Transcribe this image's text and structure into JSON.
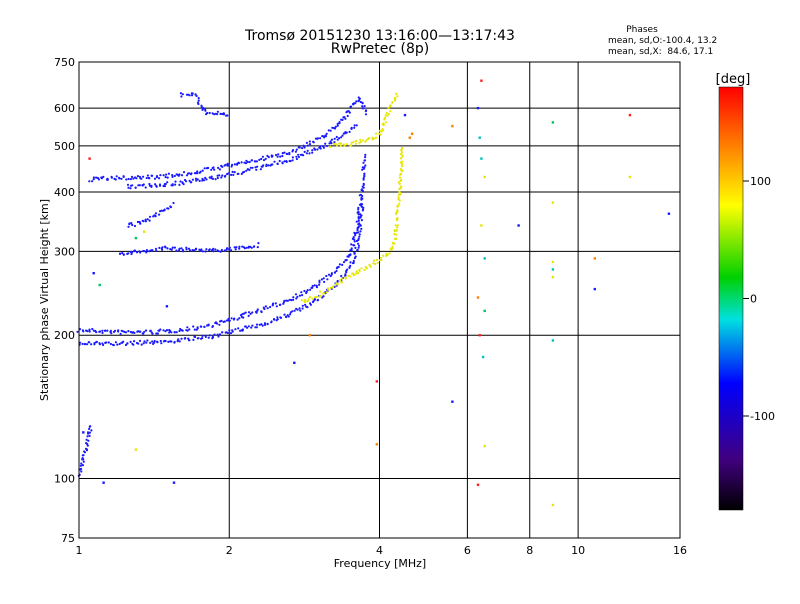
{
  "header": {
    "title_line1": "Tromsø 20151230 13:16:00—13:17:43",
    "title_line2": "RwPretec (8p)"
  },
  "phases_box": {
    "title": "Phases",
    "line1": "mean, sd,O:-100.4, 13.2",
    "line2": "mean, sd,X:  84.6, 17.1"
  },
  "chart_data": {
    "type": "scatter",
    "xlabel": "Frequency [MHz]",
    "ylabel": "Stationary phase Virtual Height [km]",
    "xscale": "log",
    "yscale": "log",
    "xlim": [
      1,
      16
    ],
    "ylim": [
      75,
      750
    ],
    "xticks": [
      1,
      2,
      4,
      6,
      8,
      10,
      16
    ],
    "yticks": [
      75,
      100,
      200,
      300,
      400,
      500,
      600,
      750
    ],
    "grid": true,
    "colorbar": {
      "label": "[deg]",
      "ticks": [
        100,
        0,
        -100
      ],
      "range": [
        -180,
        180
      ]
    },
    "traces": [
      {
        "name": "",
        "color": "#1a1aff",
        "points": [
          [
            1.0,
            205
          ],
          [
            1.1,
            204
          ],
          [
            1.2,
            203
          ],
          [
            1.4,
            203
          ],
          [
            1.6,
            205
          ],
          [
            1.8,
            209
          ],
          [
            2.0,
            215
          ],
          [
            2.2,
            222
          ],
          [
            2.5,
            232
          ],
          [
            2.8,
            245
          ],
          [
            3.0,
            255
          ],
          [
            3.2,
            268
          ],
          [
            3.4,
            285
          ],
          [
            3.5,
            300
          ],
          [
            3.6,
            330
          ],
          [
            3.65,
            370
          ],
          [
            3.7,
            410
          ],
          [
            3.72,
            450
          ],
          [
            3.75,
            480
          ]
        ]
      },
      {
        "name": "",
        "color": "#1a1aff",
        "points": [
          [
            1.0,
            192
          ],
          [
            1.2,
            192
          ],
          [
            1.5,
            194
          ],
          [
            1.8,
            198
          ],
          [
            2.0,
            203
          ],
          [
            2.3,
            210
          ],
          [
            2.6,
            220
          ],
          [
            2.9,
            232
          ],
          [
            3.1,
            243
          ],
          [
            3.3,
            258
          ],
          [
            3.5,
            278
          ],
          [
            3.6,
            300
          ],
          [
            3.65,
            330
          ],
          [
            3.7,
            380
          ]
        ]
      },
      {
        "name": "",
        "color": "#1a1aff",
        "points": [
          [
            1.05,
            425
          ],
          [
            1.2,
            428
          ],
          [
            1.4,
            430
          ],
          [
            1.6,
            435
          ],
          [
            1.8,
            445
          ],
          [
            2.0,
            455
          ],
          [
            2.3,
            468
          ],
          [
            2.6,
            482
          ],
          [
            2.9,
            505
          ],
          [
            3.1,
            525
          ],
          [
            3.3,
            555
          ],
          [
            3.45,
            585
          ],
          [
            3.55,
            610
          ],
          [
            3.65,
            630
          ],
          [
            3.72,
            605
          ],
          [
            3.75,
            580
          ]
        ]
      },
      {
        "name": "",
        "color": "#1a1aff",
        "points": [
          [
            1.25,
            410
          ],
          [
            1.5,
            415
          ],
          [
            1.8,
            425
          ],
          [
            2.0,
            435
          ],
          [
            2.3,
            450
          ],
          [
            2.6,
            465
          ],
          [
            2.9,
            485
          ],
          [
            3.1,
            500
          ],
          [
            3.3,
            520
          ],
          [
            3.5,
            540
          ],
          [
            3.6,
            560
          ]
        ]
      },
      {
        "name": "",
        "color": "#e6e600",
        "points": [
          [
            2.8,
            235
          ],
          [
            3.0,
            242
          ],
          [
            3.2,
            252
          ],
          [
            3.4,
            262
          ],
          [
            3.6,
            272
          ],
          [
            3.8,
            280
          ],
          [
            4.0,
            288
          ],
          [
            4.2,
            298
          ],
          [
            4.3,
            320
          ],
          [
            4.35,
            360
          ],
          [
            4.4,
            420
          ],
          [
            4.45,
            500
          ]
        ]
      },
      {
        "name": "",
        "color": "#e6e600",
        "points": [
          [
            3.2,
            500
          ],
          [
            3.5,
            505
          ],
          [
            3.8,
            515
          ],
          [
            4.0,
            530
          ],
          [
            4.1,
            560
          ],
          [
            4.2,
            600
          ],
          [
            4.3,
            630
          ],
          [
            4.35,
            645
          ]
        ]
      },
      {
        "name": "",
        "color": "#1a1aff",
        "points": [
          [
            1.25,
            340
          ],
          [
            1.35,
            345
          ],
          [
            1.5,
            370
          ],
          [
            1.55,
            378
          ]
        ]
      },
      {
        "name": "",
        "color": "#1a1aff",
        "points": [
          [
            1.0,
            102
          ],
          [
            1.02,
            110
          ],
          [
            1.04,
            120
          ],
          [
            1.06,
            130
          ]
        ]
      },
      {
        "name": "",
        "color": "#1a1aff",
        "points": [
          [
            1.2,
            295
          ],
          [
            1.35,
            300
          ],
          [
            1.5,
            305
          ],
          [
            1.7,
            302
          ],
          [
            1.9,
            302
          ],
          [
            2.1,
            305
          ],
          [
            2.3,
            310
          ]
        ]
      },
      {
        "name": "",
        "color": "#1a1aff",
        "points": [
          [
            1.6,
            640
          ],
          [
            1.7,
            645
          ],
          [
            1.8,
            585
          ],
          [
            1.9,
            585
          ],
          [
            2.0,
            583
          ]
        ]
      }
    ],
    "isolated_points": [
      [
        6.4,
        685,
        "#ff2020"
      ],
      [
        6.3,
        600,
        "#1a1aff"
      ],
      [
        6.35,
        520,
        "#00c0c0"
      ],
      [
        6.4,
        470,
        "#00c0c0"
      ],
      [
        6.5,
        430,
        "#e6e600"
      ],
      [
        6.4,
        340,
        "#e6e600"
      ],
      [
        6.5,
        290,
        "#00c0c0"
      ],
      [
        6.3,
        240,
        "#ff8000"
      ],
      [
        6.5,
        225,
        "#00c060"
      ],
      [
        6.35,
        200,
        "#ff2020"
      ],
      [
        6.45,
        180,
        "#00c0c0"
      ],
      [
        6.3,
        97,
        "#ff2020"
      ],
      [
        6.5,
        117,
        "#e6e600"
      ],
      [
        5.6,
        550,
        "#ff8000"
      ],
      [
        5.6,
        145,
        "#1a1aff"
      ],
      [
        7.6,
        340,
        "#1a1aff"
      ],
      [
        8.9,
        560,
        "#00c060"
      ],
      [
        8.9,
        380,
        "#e6e600"
      ],
      [
        8.9,
        285,
        "#e6e600"
      ],
      [
        8.9,
        275,
        "#00c0c0"
      ],
      [
        8.9,
        265,
        "#e6e600"
      ],
      [
        8.9,
        195,
        "#00c0c0"
      ],
      [
        8.9,
        88,
        "#e6e600"
      ],
      [
        10.8,
        290,
        "#ff8000"
      ],
      [
        10.8,
        250,
        "#1a1aff"
      ],
      [
        12.7,
        580,
        "#ff2020"
      ],
      [
        12.7,
        430,
        "#e6e600"
      ],
      [
        15.2,
        360,
        "#1a1aff"
      ],
      [
        3.95,
        160,
        "#ff2020"
      ],
      [
        3.95,
        118,
        "#ff8000"
      ],
      [
        4.6,
        520,
        "#ff8000"
      ],
      [
        4.65,
        530,
        "#ff8000"
      ],
      [
        1.55,
        98,
        "#1a1aff"
      ],
      [
        1.12,
        98,
        "#1a1aff"
      ],
      [
        1.3,
        115,
        "#e6e600"
      ],
      [
        1.02,
        125,
        "#1a1aff"
      ],
      [
        1.05,
        470,
        "#ff2020"
      ],
      [
        1.07,
        270,
        "#1a1aff"
      ],
      [
        1.1,
        255,
        "#00c060"
      ],
      [
        1.3,
        320,
        "#00c060"
      ],
      [
        1.35,
        330,
        "#e6e600"
      ],
      [
        2.9,
        200,
        "#ff8000"
      ],
      [
        1.5,
        230,
        "#1a1aff"
      ],
      [
        2.7,
        175,
        "#1a1aff"
      ],
      [
        4.5,
        580,
        "#1a1aff"
      ]
    ]
  }
}
